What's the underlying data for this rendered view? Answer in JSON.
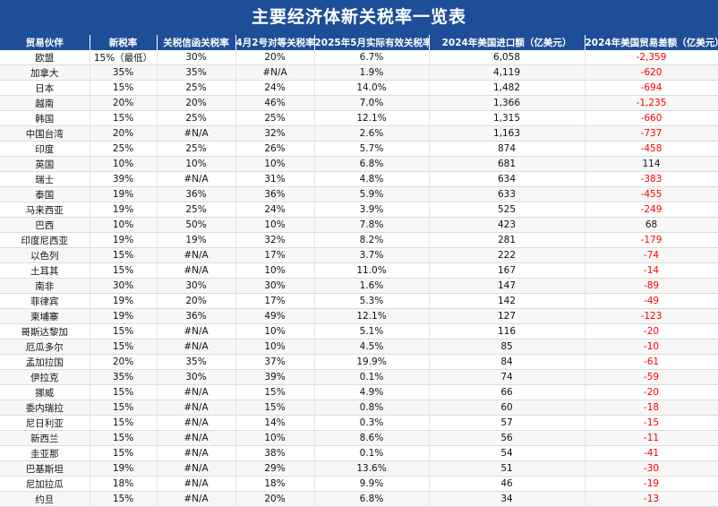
{
  "title": "主要经济体新关税率一览表",
  "columns": [
    "贸易伙伴",
    "新税率",
    "关税信函关税率",
    "4月2号对等关税率",
    "2025年5月实际有效关税率",
    "2024年美国进口额（亿美元）",
    "2024年美国贸易差额（亿美元）"
  ],
  "rows": [
    [
      "欧盟",
      "15%（最低）",
      "30%",
      "20%",
      "6.7%",
      "6,058",
      "-2,359"
    ],
    [
      "加拿大",
      "35%",
      "35%",
      "#N/A",
      "1.9%",
      "4,119",
      "-620"
    ],
    [
      "日本",
      "15%",
      "25%",
      "24%",
      "14.0%",
      "1,482",
      "-694"
    ],
    [
      "越南",
      "20%",
      "20%",
      "46%",
      "7.0%",
      "1,366",
      "-1,235"
    ],
    [
      "韩国",
      "15%",
      "25%",
      "25%",
      "12.1%",
      "1,315",
      "-660"
    ],
    [
      "中国台湾",
      "20%",
      "#N/A",
      "32%",
      "2.6%",
      "1,163",
      "-737"
    ],
    [
      "印度",
      "25%",
      "25%",
      "26%",
      "5.7%",
      "874",
      "-458"
    ],
    [
      "英国",
      "10%",
      "10%",
      "10%",
      "6.8%",
      "681",
      "114"
    ],
    [
      "瑞士",
      "39%",
      "#N/A",
      "31%",
      "4.8%",
      "634",
      "-383"
    ],
    [
      "泰国",
      "19%",
      "36%",
      "36%",
      "5.9%",
      "633",
      "-455"
    ],
    [
      "马来西亚",
      "19%",
      "25%",
      "24%",
      "3.9%",
      "525",
      "-249"
    ],
    [
      "巴西",
      "10%",
      "50%",
      "10%",
      "7.8%",
      "423",
      "68"
    ],
    [
      "印度尼西亚",
      "19%",
      "19%",
      "32%",
      "8.2%",
      "281",
      "-179"
    ],
    [
      "以色列",
      "15%",
      "#N/A",
      "17%",
      "3.7%",
      "222",
      "-74"
    ],
    [
      "土耳其",
      "15%",
      "#N/A",
      "10%",
      "11.0%",
      "167",
      "-14"
    ],
    [
      "南非",
      "30%",
      "30%",
      "30%",
      "1.6%",
      "147",
      "-89"
    ],
    [
      "菲律宾",
      "19%",
      "20%",
      "17%",
      "5.3%",
      "142",
      "-49"
    ],
    [
      "柬埔寨",
      "19%",
      "36%",
      "49%",
      "12.1%",
      "127",
      "-123"
    ],
    [
      "哥斯达黎加",
      "15%",
      "#N/A",
      "10%",
      "5.1%",
      "116",
      "-20"
    ],
    [
      "厄瓜多尔",
      "15%",
      "#N/A",
      "10%",
      "4.5%",
      "85",
      "-10"
    ],
    [
      "孟加拉国",
      "20%",
      "35%",
      "37%",
      "19.9%",
      "84",
      "-61"
    ],
    [
      "伊拉克",
      "35%",
      "30%",
      "39%",
      "0.1%",
      "74",
      "-59"
    ],
    [
      "挪威",
      "15%",
      "#N/A",
      "15%",
      "4.9%",
      "66",
      "-20"
    ],
    [
      "委内瑞拉",
      "15%",
      "#N/A",
      "15%",
      "0.8%",
      "60",
      "-18"
    ],
    [
      "尼日利亚",
      "15%",
      "#N/A",
      "14%",
      "0.3%",
      "57",
      "-15"
    ],
    [
      "新西兰",
      "15%",
      "#N/A",
      "10%",
      "8.6%",
      "56",
      "-11"
    ],
    [
      "圭亚那",
      "15%",
      "#N/A",
      "38%",
      "0.1%",
      "54",
      "-41"
    ],
    [
      "巴基斯坦",
      "19%",
      "#N/A",
      "29%",
      "13.6%",
      "51",
      "-30"
    ],
    [
      "尼加拉瓜",
      "18%",
      "#N/A",
      "18%",
      "9.9%",
      "46",
      "-19"
    ],
    [
      "约旦",
      "15%",
      "#N/A",
      "20%",
      "6.8%",
      "34",
      "-13"
    ]
  ],
  "colors": {
    "header_bg": "#1f4e99",
    "header_text": "#ffffff",
    "negative": "#ff0000"
  }
}
